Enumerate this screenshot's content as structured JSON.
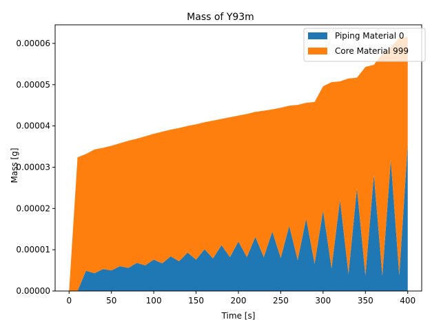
{
  "chart_data": {
    "type": "area",
    "stacked": true,
    "title": "Mass of Y93m",
    "xlabel": "Time [s]",
    "ylabel": "Mass [g]",
    "xlim": [
      -16.5,
      416.5
    ],
    "ylim": [
      0,
      6.45e-05
    ],
    "xticks": [
      0,
      50,
      100,
      150,
      200,
      250,
      300,
      350,
      400
    ],
    "xtick_labels": [
      "0",
      "50",
      "100",
      "150",
      "200",
      "250",
      "300",
      "350",
      "400"
    ],
    "yticks": [
      0,
      1e-05,
      2e-05,
      3e-05,
      4e-05,
      5e-05,
      6e-05
    ],
    "ytick_labels": [
      "0.00000",
      "0.00001",
      "0.00002",
      "0.00003",
      "0.00004",
      "0.00005",
      "0.00006"
    ],
    "legend_position": "top-right",
    "x": [
      0,
      10,
      20,
      30,
      40,
      50,
      60,
      70,
      80,
      90,
      100,
      110,
      120,
      130,
      140,
      150,
      160,
      170,
      180,
      190,
      200,
      210,
      220,
      230,
      240,
      250,
      260,
      270,
      280,
      290,
      300,
      310,
      320,
      330,
      340,
      350,
      360,
      370,
      380,
      390,
      400
    ],
    "series": [
      {
        "name": "Piping Material 0",
        "color": "#1f77b4",
        "values": [
          0,
          0,
          4.9e-06,
          4.3e-06,
          5.3e-06,
          5e-06,
          6e-06,
          5.6e-06,
          6.8e-06,
          6.2e-06,
          7.6e-06,
          6.7e-06,
          8.4e-06,
          7.2e-06,
          9.3e-06,
          7.6e-06,
          1.01e-05,
          7.9e-06,
          1.11e-05,
          8.2e-06,
          1.2e-05,
          8.2e-06,
          1.31e-05,
          8.2e-06,
          1.44e-05,
          8e-06,
          1.58e-05,
          7.5e-06,
          1.75e-05,
          6.6e-06,
          1.95e-05,
          5.5e-06,
          2.21e-05,
          4.1e-06,
          2.49e-05,
          3.7e-06,
          2.82e-05,
          3.7e-06,
          3.17e-05,
          3.8e-06,
          3.55e-05
        ]
      },
      {
        "name": "Core Material 999",
        "color": "#ff7f0e",
        "values": [
          0,
          3.24e-05,
          2.83e-05,
          3e-05,
          2.94e-05,
          3.02e-05,
          2.98e-05,
          3.08e-05,
          3.01e-05,
          3.13e-05,
          3.05e-05,
          3.19e-05,
          3.07e-05,
          3.23e-05,
          3.07e-05,
          3.28e-05,
          3.08e-05,
          3.34e-05,
          3.06e-05,
          3.39e-05,
          3.05e-05,
          3.47e-05,
          3.03e-05,
          3.55e-05,
          2.96e-05,
          3.64e-05,
          2.91e-05,
          3.76e-05,
          2.81e-05,
          3.92e-05,
          3.01e-05,
          4.51e-05,
          2.87e-05,
          4.74e-05,
          2.68e-05,
          5.06e-05,
          2.66e-05,
          5.38e-05,
          2.74e-05,
          5.75e-05,
          2.61e-05
        ]
      }
    ]
  }
}
